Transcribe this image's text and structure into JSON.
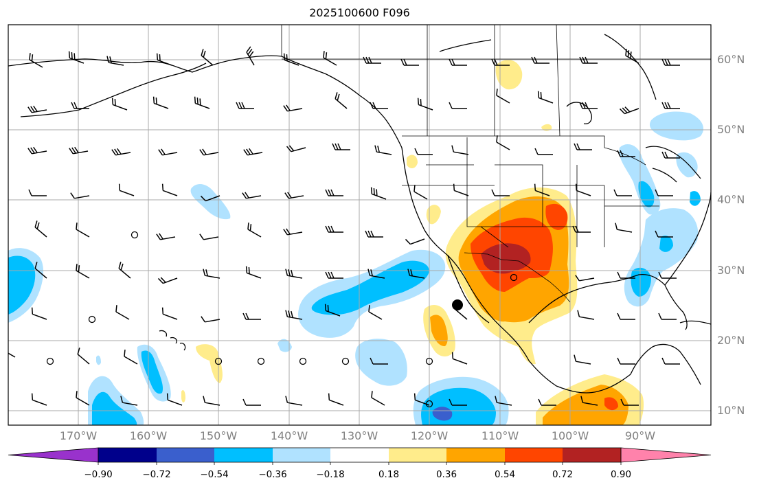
{
  "title": "2025100600 F096",
  "lat_labels": [
    "60°N",
    "50°N",
    "40°N",
    "30°N",
    "20°N",
    "10°N"
  ],
  "lon_labels": [
    "170°W",
    "160°W",
    "150°W",
    "140°W",
    "130°W",
    "120°W",
    "110°W",
    "100°W",
    "90°W"
  ],
  "colorbar": {
    "tick_labels": [
      "−0.90",
      "−0.72",
      "−0.54",
      "−0.36",
      "−0.18",
      "0.18",
      "0.36",
      "0.54",
      "0.72",
      "0.90"
    ],
    "colors": [
      "#9932cc",
      "#00008b",
      "#3a5fcd",
      "#00bfff",
      "#b0e2ff",
      "#ffffff",
      "#ffec8b",
      "#ffa500",
      "#ff4500",
      "#b22222",
      "#ff82ab"
    ]
  },
  "map": {
    "grid_color": "#a9a9a9",
    "land_color": "#000000"
  }
}
